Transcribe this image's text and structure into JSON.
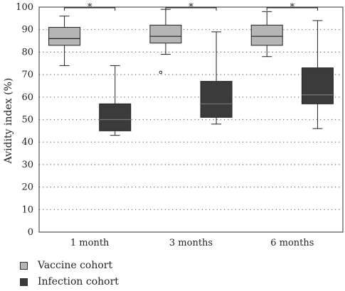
{
  "chart_data": {
    "type": "box",
    "title": "",
    "xlabel": "",
    "ylabel": "Avidity index (%)",
    "ylim": [
      0,
      100
    ],
    "yticks": [
      0,
      10,
      20,
      30,
      40,
      50,
      60,
      70,
      80,
      90,
      100
    ],
    "grid": "horizontal-dotted",
    "categories": [
      "1 month",
      "3 months",
      "6 months"
    ],
    "significance_marker": "*",
    "series": [
      {
        "name": "Vaccine cohort",
        "color": "#b5b5b5",
        "boxes": [
          {
            "min": 74,
            "q1": 83,
            "median": 86,
            "q3": 91,
            "max": 96,
            "outliers": []
          },
          {
            "min": 79,
            "q1": 84,
            "median": 87,
            "q3": 92,
            "max": 99,
            "outliers": [
              71
            ]
          },
          {
            "min": 78,
            "q1": 83,
            "median": 87,
            "q3": 92,
            "max": 98,
            "outliers": []
          }
        ]
      },
      {
        "name": "Infection cohort",
        "color": "#3b3b3b",
        "boxes": [
          {
            "min": 43,
            "q1": 45,
            "median": 50,
            "q3": 57,
            "max": 74,
            "outliers": []
          },
          {
            "min": 48,
            "q1": 51,
            "median": 57,
            "q3": 67,
            "max": 89,
            "outliers": []
          },
          {
            "min": 46,
            "q1": 57,
            "median": 61,
            "q3": 73,
            "max": 94,
            "outliers": []
          }
        ]
      }
    ]
  }
}
